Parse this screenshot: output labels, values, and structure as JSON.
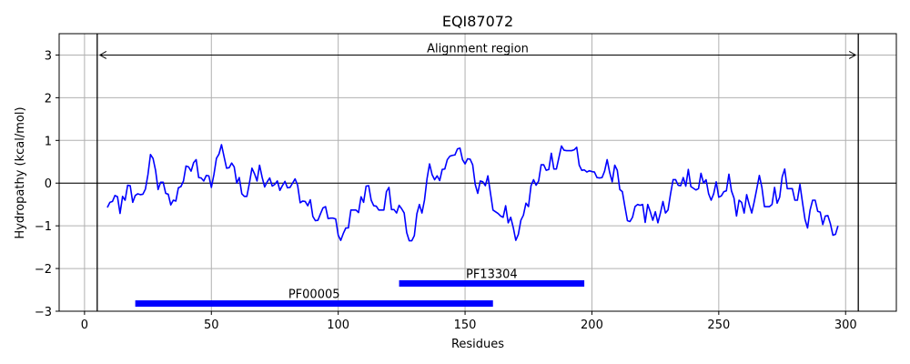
{
  "chart_data": {
    "type": "line",
    "title": "EQI87072",
    "xlabel": "Residues",
    "ylabel": "Hydropathy (kcal/mol)",
    "xlim": [
      -10,
      320
    ],
    "ylim": [
      -3,
      3.5
    ],
    "grid": true,
    "x_ticks": [
      0,
      50,
      100,
      150,
      200,
      250,
      300
    ],
    "y_ticks": [
      -3,
      -2,
      -1,
      0,
      1,
      2,
      3
    ],
    "series": [
      {
        "color": "#0000ff",
        "x_start": 9,
        "x_step": 1,
        "values": [
          -0.57,
          -0.45,
          -0.43,
          -0.29,
          -0.32,
          -0.71,
          -0.31,
          -0.4,
          -0.05,
          -0.06,
          -0.45,
          -0.29,
          -0.25,
          -0.27,
          -0.26,
          -0.14,
          0.2,
          0.67,
          0.58,
          0.3,
          -0.15,
          0.02,
          0.02,
          -0.24,
          -0.26,
          -0.51,
          -0.4,
          -0.42,
          -0.11,
          -0.08,
          0.05,
          0.4,
          0.38,
          0.28,
          0.48,
          0.55,
          0.13,
          0.12,
          0.05,
          0.18,
          0.17,
          -0.1,
          0.2,
          0.58,
          0.68,
          0.9,
          0.62,
          0.35,
          0.36,
          0.47,
          0.38,
          0.0,
          0.13,
          -0.25,
          -0.31,
          -0.31,
          0.0,
          0.35,
          0.22,
          0.05,
          0.42,
          0.14,
          -0.09,
          0.03,
          0.12,
          -0.07,
          -0.03,
          0.05,
          -0.17,
          -0.06,
          0.04,
          -0.11,
          -0.1,
          0.0,
          0.1,
          -0.05,
          -0.46,
          -0.42,
          -0.43,
          -0.53,
          -0.39,
          -0.78,
          -0.88,
          -0.87,
          -0.72,
          -0.58,
          -0.55,
          -0.83,
          -0.82,
          -0.82,
          -0.84,
          -1.22,
          -1.34,
          -1.18,
          -1.05,
          -1.05,
          -0.63,
          -0.63,
          -0.63,
          -0.69,
          -0.32,
          -0.45,
          -0.07,
          -0.06,
          -0.4,
          -0.53,
          -0.54,
          -0.63,
          -0.63,
          -0.63,
          -0.2,
          -0.1,
          -0.62,
          -0.62,
          -0.7,
          -0.52,
          -0.6,
          -0.7,
          -1.16,
          -1.35,
          -1.35,
          -1.23,
          -0.72,
          -0.5,
          -0.7,
          -0.4,
          0.1,
          0.45,
          0.2,
          0.08,
          0.17,
          0.06,
          0.32,
          0.33,
          0.55,
          0.63,
          0.65,
          0.66,
          0.8,
          0.82,
          0.55,
          0.45,
          0.57,
          0.56,
          0.43,
          -0.03,
          -0.24,
          0.05,
          0.03,
          -0.06,
          0.17,
          -0.23,
          -0.63,
          -0.67,
          -0.71,
          -0.77,
          -0.8,
          -0.53,
          -0.93,
          -0.8,
          -1.04,
          -1.34,
          -1.2,
          -0.87,
          -0.75,
          -0.47,
          -0.55,
          -0.06,
          0.08,
          -0.05,
          0.05,
          0.43,
          0.43,
          0.3,
          0.32,
          0.7,
          0.33,
          0.33,
          0.6,
          0.87,
          0.77,
          0.76,
          0.76,
          0.76,
          0.78,
          0.84,
          0.42,
          0.3,
          0.31,
          0.26,
          0.29,
          0.27,
          0.26,
          0.13,
          0.12,
          0.13,
          0.28,
          0.55,
          0.25,
          0.03,
          0.42,
          0.3,
          -0.15,
          -0.2,
          -0.55,
          -0.88,
          -0.9,
          -0.8,
          -0.55,
          -0.5,
          -0.52,
          -0.5,
          -0.92,
          -0.5,
          -0.67,
          -0.87,
          -0.67,
          -0.93,
          -0.7,
          -0.43,
          -0.7,
          -0.63,
          -0.25,
          0.08,
          0.08,
          -0.05,
          -0.06,
          0.13,
          -0.07,
          0.32,
          -0.08,
          -0.12,
          -0.16,
          -0.13,
          0.23,
          0.0,
          0.08,
          -0.25,
          -0.4,
          -0.25,
          0.03,
          -0.33,
          -0.3,
          -0.2,
          -0.18,
          0.21,
          -0.18,
          -0.35,
          -0.77,
          -0.4,
          -0.45,
          -0.7,
          -0.27,
          -0.5,
          -0.7,
          -0.43,
          -0.13,
          0.18,
          -0.1,
          -0.55,
          -0.55,
          -0.55,
          -0.5,
          -0.1,
          -0.47,
          -0.33,
          0.15,
          0.33,
          -0.13,
          -0.13,
          -0.13,
          -0.4,
          -0.4,
          -0.03,
          -0.45,
          -0.85,
          -1.05,
          -0.63,
          -0.4,
          -0.4,
          -0.66,
          -0.68,
          -0.97,
          -0.77,
          -0.76,
          -0.95,
          -1.22,
          -1.2,
          -1.0
        ]
      }
    ],
    "hlines": [
      0
    ],
    "vlines": [
      5,
      305
    ],
    "annotations": [
      {
        "text": "Alignment region",
        "x_from": 5,
        "x_to": 305,
        "y": 3,
        "style": "double-arrow"
      }
    ],
    "domains": [
      {
        "name": "PF13304",
        "start": 124,
        "end": 197,
        "y": -2.35,
        "color": "#0000ff"
      },
      {
        "name": "PF00005",
        "start": 20,
        "end": 161,
        "y": -2.82,
        "color": "#0000ff"
      }
    ]
  }
}
